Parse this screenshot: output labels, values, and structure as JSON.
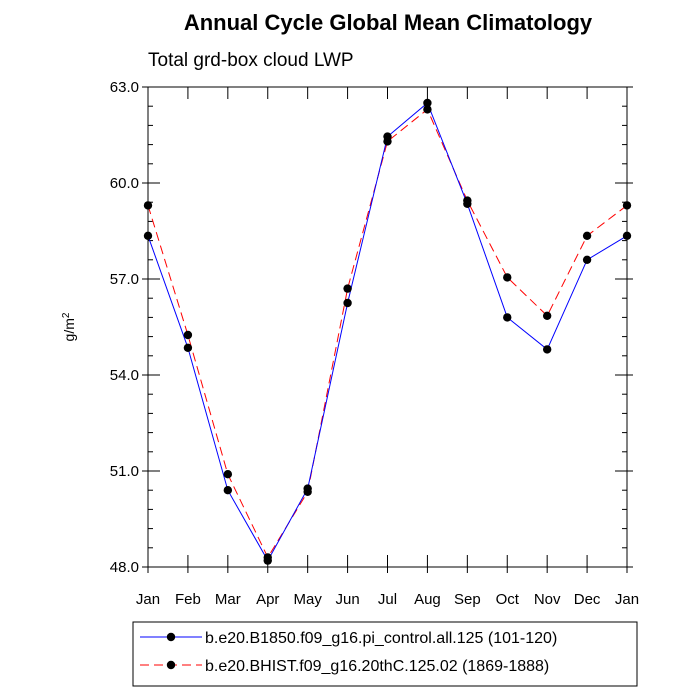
{
  "chart_data": {
    "type": "line",
    "title": "Annual Cycle Global Mean Climatology",
    "subtitle": "Total grd-box cloud LWP",
    "xlabel": "",
    "ylabel": "g/m",
    "ylabel_superscript": "2",
    "categories": [
      "Jan",
      "Feb",
      "Mar",
      "Apr",
      "May",
      "Jun",
      "Jul",
      "Aug",
      "Sep",
      "Oct",
      "Nov",
      "Dec",
      "Jan"
    ],
    "ylim": [
      48.0,
      63.0
    ],
    "yticks": [
      48.0,
      51.0,
      54.0,
      57.0,
      60.0,
      63.0
    ],
    "ytick_labels": [
      "48.0",
      "51.0",
      "54.0",
      "57.0",
      "60.0",
      "63.0"
    ],
    "series": [
      {
        "name": "b.e20.B1850.f09_g16.pi_control.all.125 (101-120)",
        "color": "#0000ff",
        "dash": "solid",
        "values": [
          58.35,
          54.85,
          50.4,
          48.2,
          50.45,
          56.25,
          61.45,
          62.5,
          59.35,
          55.8,
          54.8,
          57.6,
          58.35
        ]
      },
      {
        "name": "b.e20.BHIST.f09_g16.20thC.125.02 (1869-1888)",
        "color": "#ff0000",
        "dash": "dashed",
        "values": [
          59.3,
          55.25,
          50.9,
          48.3,
          50.35,
          56.7,
          61.3,
          62.3,
          59.45,
          57.05,
          55.85,
          58.35,
          59.3
        ]
      }
    ],
    "legend_position": "bottom"
  }
}
